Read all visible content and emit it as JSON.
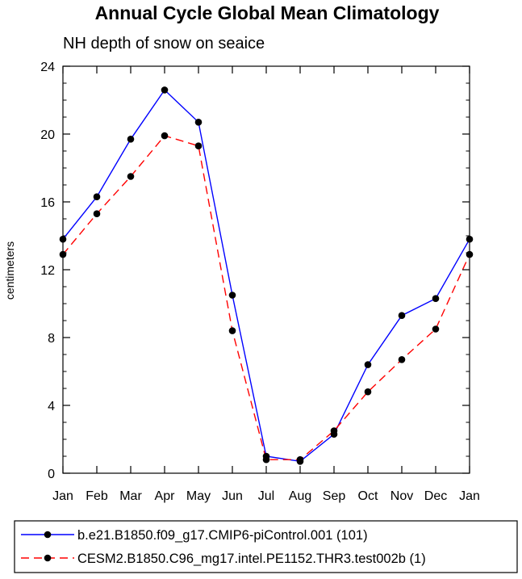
{
  "chart_data": {
    "type": "line",
    "title": "Annual Cycle Global Mean Climatology",
    "subtitle": "NH depth of snow on seaice",
    "xlabel": "",
    "ylabel": "centimeters",
    "categories": [
      "Jan",
      "Feb",
      "Mar",
      "Apr",
      "May",
      "Jun",
      "Jul",
      "Aug",
      "Sep",
      "Oct",
      "Nov",
      "Dec",
      "Jan"
    ],
    "ylim": [
      0,
      24
    ],
    "yticks": [
      "0",
      "4",
      "8",
      "12",
      "16",
      "20",
      "24"
    ],
    "series": [
      {
        "name": "b.e21.B1850.f09_g17.CMIP6-piControl.001 (101)",
        "color": "#0000ff",
        "dash": "solid",
        "values": [
          13.8,
          16.3,
          19.7,
          22.6,
          20.7,
          10.5,
          1.0,
          0.7,
          2.3,
          6.4,
          9.3,
          10.3,
          13.8
        ]
      },
      {
        "name": "CESM2.B1850.C96_mg17.intel.PE1152.THR3.test002b (1)",
        "color": "#ff0000",
        "dash": "dashed",
        "values": [
          12.9,
          15.3,
          17.5,
          19.9,
          19.3,
          8.4,
          0.8,
          0.8,
          2.5,
          4.8,
          6.7,
          8.5,
          12.9
        ]
      }
    ],
    "legend_position": "bottom",
    "grid": false
  }
}
